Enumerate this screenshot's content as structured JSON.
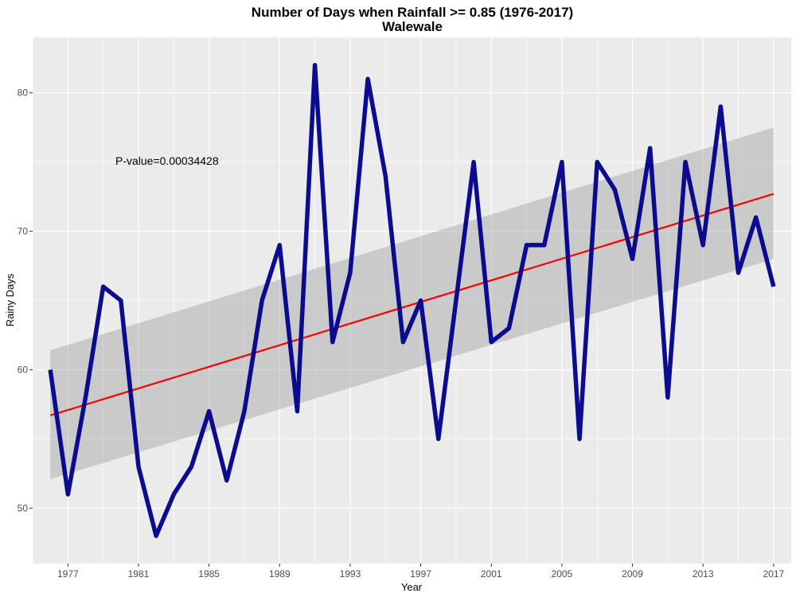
{
  "chart_data": {
    "type": "line",
    "title": "Number of Days when Rainfall >= 0.85 (1976-2017)",
    "subtitle": "Walewale",
    "xlabel": "Year",
    "ylabel": "Rainy Days",
    "annotation": "P-value=0.00034428",
    "xlim": [
      1975,
      2018
    ],
    "ylim": [
      46,
      84
    ],
    "x_ticks": [
      1977,
      1981,
      1985,
      1989,
      1993,
      1997,
      2001,
      2005,
      2009,
      2013,
      2017
    ],
    "y_ticks": [
      50,
      60,
      70,
      80
    ],
    "grid": true,
    "series": [
      {
        "kind": "observed",
        "color": "#00008b",
        "x": [
          1976,
          1977,
          1978,
          1979,
          1980,
          1981,
          1982,
          1983,
          1984,
          1985,
          1986,
          1987,
          1988,
          1989,
          1990,
          1991,
          1992,
          1993,
          1994,
          1995,
          1996,
          1997,
          1998,
          1999,
          2000,
          2001,
          2002,
          2003,
          2004,
          2005,
          2006,
          2007,
          2008,
          2009,
          2010,
          2011,
          2012,
          2013,
          2014,
          2015,
          2016,
          2017
        ],
        "y": [
          60,
          51,
          58,
          66,
          65,
          53,
          48,
          51,
          53,
          57,
          52,
          57,
          65,
          69,
          57,
          82,
          62,
          67,
          81,
          74,
          62,
          65,
          55,
          65,
          75,
          62,
          63,
          69,
          69,
          75,
          55,
          75,
          73,
          68,
          76,
          58,
          75,
          69,
          79,
          67,
          71,
          66
        ]
      },
      {
        "kind": "linear-trend",
        "color": "#ff0000",
        "x": [
          1976,
          2017
        ],
        "y": [
          56.7,
          72.7
        ]
      }
    ],
    "confidence_band": {
      "color": "#999999",
      "x": [
        1976,
        2017
      ],
      "lower": [
        52.1,
        68.0
      ],
      "upper": [
        61.4,
        77.5
      ]
    },
    "colors": {
      "panel_background": "#ebebeb",
      "grid": "#ffffff",
      "band": "#999999",
      "line": "#00008b",
      "trend": "#ff0000"
    }
  }
}
